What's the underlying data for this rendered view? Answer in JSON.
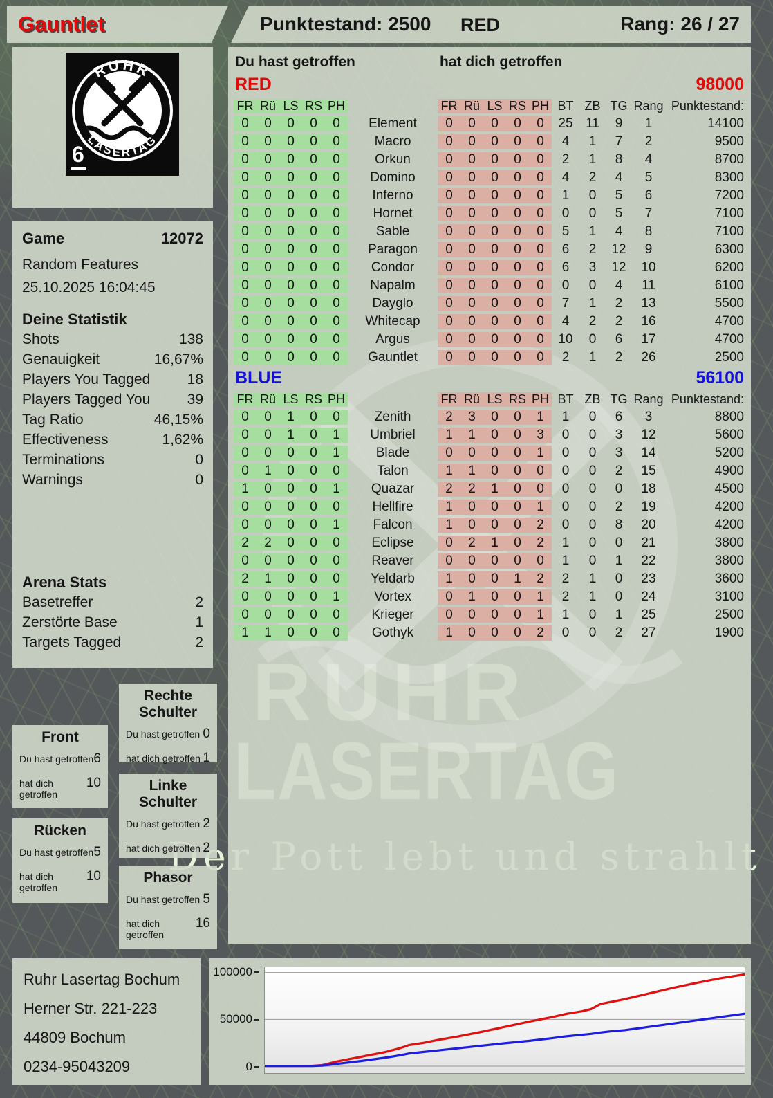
{
  "header": {
    "player_name": "Gauntlet",
    "score_label": "Punktestand: 2500",
    "team": "RED",
    "rank_label": "Rang: 26 / 27"
  },
  "logo": {
    "arc_top": "RUHR",
    "arc_bottom": "LASERTAG",
    "badge_number": "6"
  },
  "game_info": {
    "label": "Game",
    "number": "12072",
    "mode": "Random Features",
    "datetime": "25.10.2025 16:04:45"
  },
  "deine_statistik": {
    "title": "Deine Statistik",
    "rows": [
      [
        "Shots",
        "138"
      ],
      [
        "Genauigkeit",
        "16,67%"
      ],
      [
        "Players You Tagged",
        "18"
      ],
      [
        "Players Tagged You",
        "39"
      ],
      [
        "Tag Ratio",
        "46,15%"
      ],
      [
        "Effectiveness",
        "1,62%"
      ],
      [
        "Terminations",
        "0"
      ],
      [
        "Warnings",
        "0"
      ]
    ]
  },
  "arena_stats": {
    "title": "Arena Stats",
    "rows": [
      [
        "Basetreffer",
        "2"
      ],
      [
        "Zerstörte Base",
        "1"
      ],
      [
        "Targets Tagged",
        "2"
      ]
    ]
  },
  "body_zones": {
    "hit_label": "Du hast getroffen",
    "got_label": "hat dich getroffen",
    "rechte_schulter": {
      "title": "Rechte Schulter",
      "hit": "0",
      "got": "1"
    },
    "front": {
      "title": "Front",
      "hit": "6",
      "got": "10"
    },
    "linke_schulter": {
      "title": "Linke Schulter",
      "hit": "2",
      "got": "2"
    },
    "ruecken": {
      "title": "Rücken",
      "hit": "5",
      "got": "10"
    },
    "phasor": {
      "title": "Phasor",
      "hit": "5",
      "got": "16"
    }
  },
  "tables": {
    "you_hit_label": "Du hast getroffen",
    "hit_you_label": "hat dich getroffen",
    "hit_cols": [
      "FR",
      "Rü",
      "LS",
      "RS",
      "PH"
    ],
    "stat_cols": [
      "BT",
      "ZB",
      "TG",
      "Rang",
      "Punktestand:"
    ],
    "red": {
      "team": "RED",
      "total": "98000",
      "rows": [
        [
          "Element",
          [
            0,
            0,
            0,
            0,
            0
          ],
          [
            0,
            0,
            0,
            0,
            0
          ],
          "25",
          "11",
          "9",
          "1",
          "14100"
        ],
        [
          "Macro",
          [
            0,
            0,
            0,
            0,
            0
          ],
          [
            0,
            0,
            0,
            0,
            0
          ],
          "4",
          "1",
          "7",
          "2",
          "9500"
        ],
        [
          "Orkun",
          [
            0,
            0,
            0,
            0,
            0
          ],
          [
            0,
            0,
            0,
            0,
            0
          ],
          "2",
          "1",
          "8",
          "4",
          "8700"
        ],
        [
          "Domino",
          [
            0,
            0,
            0,
            0,
            0
          ],
          [
            0,
            0,
            0,
            0,
            0
          ],
          "4",
          "2",
          "4",
          "5",
          "8300"
        ],
        [
          "Inferno",
          [
            0,
            0,
            0,
            0,
            0
          ],
          [
            0,
            0,
            0,
            0,
            0
          ],
          "1",
          "0",
          "5",
          "6",
          "7200"
        ],
        [
          "Hornet",
          [
            0,
            0,
            0,
            0,
            0
          ],
          [
            0,
            0,
            0,
            0,
            0
          ],
          "0",
          "0",
          "5",
          "7",
          "7100"
        ],
        [
          "Sable",
          [
            0,
            0,
            0,
            0,
            0
          ],
          [
            0,
            0,
            0,
            0,
            0
          ],
          "5",
          "1",
          "4",
          "8",
          "7100"
        ],
        [
          "Paragon",
          [
            0,
            0,
            0,
            0,
            0
          ],
          [
            0,
            0,
            0,
            0,
            0
          ],
          "6",
          "2",
          "12",
          "9",
          "6300"
        ],
        [
          "Condor",
          [
            0,
            0,
            0,
            0,
            0
          ],
          [
            0,
            0,
            0,
            0,
            0
          ],
          "6",
          "3",
          "12",
          "10",
          "6200"
        ],
        [
          "Napalm",
          [
            0,
            0,
            0,
            0,
            0
          ],
          [
            0,
            0,
            0,
            0,
            0
          ],
          "0",
          "0",
          "4",
          "11",
          "6100"
        ],
        [
          "Dayglo",
          [
            0,
            0,
            0,
            0,
            0
          ],
          [
            0,
            0,
            0,
            0,
            0
          ],
          "7",
          "1",
          "2",
          "13",
          "5500"
        ],
        [
          "Whitecap",
          [
            0,
            0,
            0,
            0,
            0
          ],
          [
            0,
            0,
            0,
            0,
            0
          ],
          "4",
          "2",
          "2",
          "16",
          "4700"
        ],
        [
          "Argus",
          [
            0,
            0,
            0,
            0,
            0
          ],
          [
            0,
            0,
            0,
            0,
            0
          ],
          "10",
          "0",
          "6",
          "17",
          "4700"
        ],
        [
          "Gauntlet",
          [
            0,
            0,
            0,
            0,
            0
          ],
          [
            0,
            0,
            0,
            0,
            0
          ],
          "2",
          "1",
          "2",
          "26",
          "2500"
        ]
      ]
    },
    "blue": {
      "team": "BLUE",
      "total": "56100",
      "rows": [
        [
          "Zenith",
          [
            0,
            0,
            1,
            0,
            0
          ],
          [
            2,
            3,
            0,
            0,
            1
          ],
          "1",
          "0",
          "6",
          "3",
          "8800"
        ],
        [
          "Umbriel",
          [
            0,
            0,
            1,
            0,
            1
          ],
          [
            1,
            1,
            0,
            0,
            3
          ],
          "0",
          "0",
          "3",
          "12",
          "5600"
        ],
        [
          "Blade",
          [
            0,
            0,
            0,
            0,
            1
          ],
          [
            0,
            0,
            0,
            0,
            1
          ],
          "0",
          "0",
          "3",
          "14",
          "5200"
        ],
        [
          "Talon",
          [
            0,
            1,
            0,
            0,
            0
          ],
          [
            1,
            1,
            0,
            0,
            0
          ],
          "0",
          "0",
          "2",
          "15",
          "4900"
        ],
        [
          "Quazar",
          [
            1,
            0,
            0,
            0,
            1
          ],
          [
            2,
            2,
            1,
            0,
            0
          ],
          "0",
          "0",
          "0",
          "18",
          "4500"
        ],
        [
          "Hellfire",
          [
            0,
            0,
            0,
            0,
            0
          ],
          [
            1,
            0,
            0,
            0,
            1
          ],
          "0",
          "0",
          "2",
          "19",
          "4200"
        ],
        [
          "Falcon",
          [
            0,
            0,
            0,
            0,
            1
          ],
          [
            1,
            0,
            0,
            0,
            2
          ],
          "0",
          "0",
          "8",
          "20",
          "4200"
        ],
        [
          "Eclipse",
          [
            2,
            2,
            0,
            0,
            0
          ],
          [
            0,
            2,
            1,
            0,
            2
          ],
          "1",
          "0",
          "0",
          "21",
          "3800"
        ],
        [
          "Reaver",
          [
            0,
            0,
            0,
            0,
            0
          ],
          [
            0,
            0,
            0,
            0,
            0
          ],
          "1",
          "0",
          "1",
          "22",
          "3800"
        ],
        [
          "Yeldarb",
          [
            2,
            1,
            0,
            0,
            0
          ],
          [
            1,
            0,
            0,
            1,
            2
          ],
          "2",
          "1",
          "0",
          "23",
          "3600"
        ],
        [
          "Vortex",
          [
            0,
            0,
            0,
            0,
            1
          ],
          [
            0,
            1,
            0,
            0,
            1
          ],
          "2",
          "1",
          "0",
          "24",
          "3100"
        ],
        [
          "Krieger",
          [
            0,
            0,
            0,
            0,
            0
          ],
          [
            0,
            0,
            0,
            0,
            1
          ],
          "1",
          "0",
          "1",
          "25",
          "2500"
        ],
        [
          "Gothyk",
          [
            1,
            1,
            0,
            0,
            0
          ],
          [
            1,
            0,
            0,
            0,
            2
          ],
          "0",
          "0",
          "2",
          "27",
          "1900"
        ]
      ]
    }
  },
  "watermark": {
    "line1": "RUHR",
    "line2": "LASERTAG",
    "tagline": "Der Pott lebt und strahlt"
  },
  "footer_address": [
    "Ruhr Lasertag Bochum",
    "Herner Str. 221-223",
    "44809 Bochum",
    "0234-95043209"
  ],
  "chart_data": {
    "type": "line",
    "title": "",
    "xlabel": "",
    "ylabel": "",
    "ylim": [
      0,
      100000
    ],
    "yticks": [
      "100000",
      "50000",
      "0"
    ],
    "ytick_values": [
      100000,
      50000,
      0
    ],
    "grid": "horizontal",
    "legend": "none",
    "x_range_percent": [
      0,
      100
    ],
    "series": [
      {
        "name": "RED",
        "color": "#e01010",
        "x": [
          0,
          5,
          10,
          12,
          15,
          20,
          25,
          28,
          30,
          33,
          36,
          40,
          45,
          50,
          55,
          60,
          63,
          66,
          68,
          70,
          72,
          75,
          80,
          85,
          90,
          95,
          100
        ],
        "y": [
          300,
          300,
          400,
          1200,
          5000,
          10000,
          15000,
          19000,
          22500,
          24800,
          28000,
          31500,
          36500,
          42000,
          47500,
          52500,
          56000,
          58500,
          61000,
          66500,
          68500,
          71500,
          77500,
          83500,
          89000,
          94000,
          98000
        ]
      },
      {
        "name": "BLUE",
        "color": "#1d1de0",
        "x": [
          0,
          5,
          10,
          12,
          15,
          20,
          25,
          28,
          30,
          33,
          36,
          40,
          45,
          50,
          55,
          60,
          63,
          66,
          68,
          70,
          72,
          75,
          80,
          85,
          90,
          95,
          100
        ],
        "y": [
          300,
          300,
          300,
          700,
          2500,
          5500,
          9000,
          11500,
          13500,
          15200,
          16800,
          19000,
          21800,
          24500,
          27000,
          30000,
          32000,
          33500,
          34500,
          36000,
          37200,
          38500,
          42000,
          45500,
          49000,
          52500,
          56000
        ]
      }
    ]
  },
  "colors": {
    "accent_red": "#e20b0b",
    "accent_blue": "#1512d8",
    "green_block": "#a6de9f",
    "pink_block": "#dcafa5",
    "panel_bg": "#d0d8ca",
    "page_bg": "#55585a"
  }
}
